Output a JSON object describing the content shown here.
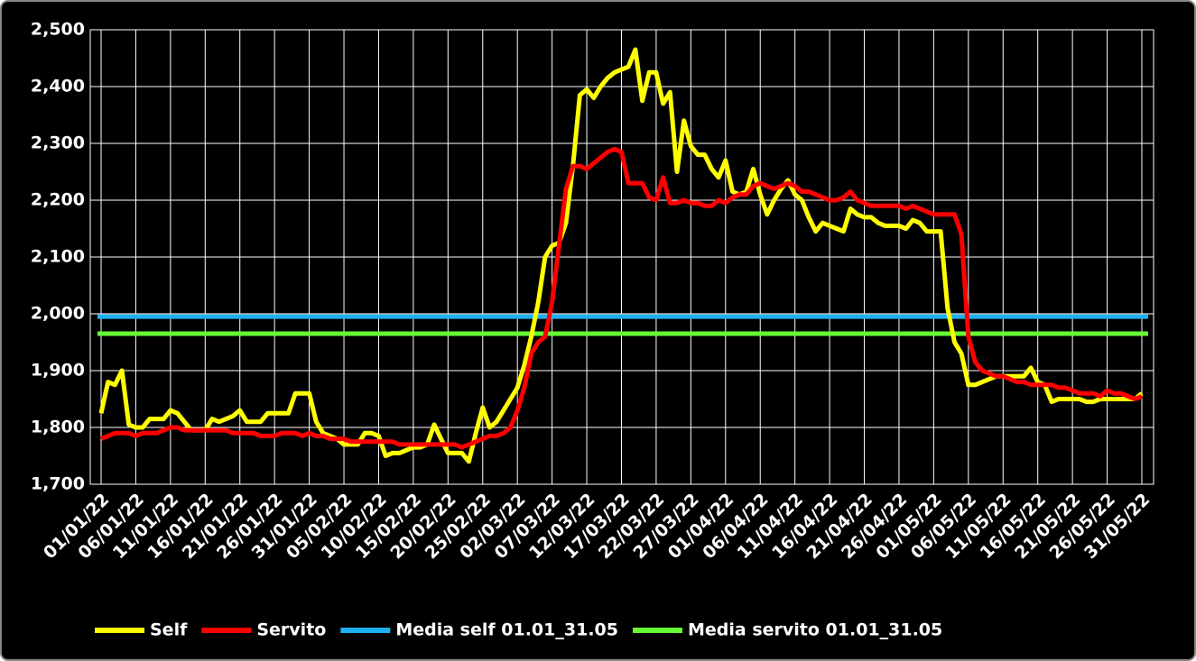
{
  "chart_data": {
    "type": "line",
    "categories": [
      "01/01/22",
      null,
      null,
      null,
      null,
      "06/01/22",
      null,
      null,
      null,
      null,
      "11/01/22",
      null,
      null,
      null,
      null,
      "16/01/22",
      null,
      null,
      null,
      null,
      "21/01/22",
      null,
      null,
      null,
      null,
      "26/01/22",
      null,
      null,
      null,
      null,
      "31/01/22",
      null,
      null,
      null,
      null,
      "05/02/22",
      null,
      null,
      null,
      null,
      "10/02/22",
      null,
      null,
      null,
      null,
      "15/02/22",
      null,
      null,
      null,
      null,
      "20/02/22",
      null,
      null,
      null,
      null,
      "25/02/22",
      null,
      null,
      null,
      null,
      "02/03/22",
      null,
      null,
      null,
      null,
      "07/03/22",
      null,
      null,
      null,
      null,
      "12/03/22",
      null,
      null,
      null,
      null,
      "17/03/22",
      null,
      null,
      null,
      null,
      "22/03/22",
      null,
      null,
      null,
      null,
      "27/03/22",
      null,
      null,
      null,
      null,
      "01/04/22",
      null,
      null,
      null,
      null,
      "06/04/22",
      null,
      null,
      null,
      null,
      "11/04/22",
      null,
      null,
      null,
      null,
      "16/04/22",
      null,
      null,
      null,
      null,
      "21/04/22",
      null,
      null,
      null,
      null,
      "26/04/22",
      null,
      null,
      null,
      null,
      "01/05/22",
      null,
      null,
      null,
      null,
      "06/05/22",
      null,
      null,
      null,
      null,
      "11/05/22",
      null,
      null,
      null,
      null,
      "16/05/22",
      null,
      null,
      null,
      null,
      "21/05/22",
      null,
      null,
      null,
      null,
      "26/05/22",
      null,
      null,
      null,
      null,
      "31/05/22"
    ],
    "series": [
      {
        "name": "Self",
        "color": "#ffff00",
        "values": [
          1825,
          1880,
          1875,
          1900,
          1805,
          1800,
          1800,
          1815,
          1815,
          1815,
          1830,
          1825,
          1810,
          1795,
          1795,
          1795,
          1815,
          1810,
          1815,
          1820,
          1830,
          1810,
          1810,
          1810,
          1825,
          1825,
          1825,
          1825,
          1860,
          1860,
          1860,
          1810,
          1790,
          1785,
          1780,
          1770,
          1770,
          1770,
          1790,
          1790,
          1785,
          1750,
          1755,
          1755,
          1760,
          1765,
          1765,
          1770,
          1805,
          1780,
          1755,
          1755,
          1755,
          1740,
          1790,
          1835,
          1800,
          1810,
          1830,
          1850,
          1870,
          1910,
          1960,
          2020,
          2100,
          2120,
          2125,
          2160,
          2260,
          2385,
          2395,
          2380,
          2400,
          2415,
          2425,
          2430,
          2435,
          2465,
          2375,
          2425,
          2425,
          2370,
          2390,
          2250,
          2340,
          2295,
          2280,
          2280,
          2255,
          2240,
          2270,
          2215,
          2210,
          2215,
          2255,
          2210,
          2175,
          2200,
          2220,
          2235,
          2210,
          2200,
          2170,
          2145,
          2160,
          2155,
          2150,
          2145,
          2185,
          2175,
          2170,
          2170,
          2160,
          2155,
          2155,
          2155,
          2150,
          2165,
          2160,
          2145,
          2145,
          2145,
          2010,
          1950,
          1930,
          1875,
          1875,
          1880,
          1885,
          1890,
          1890,
          1890,
          1890,
          1890,
          1905,
          1880,
          1875,
          1845,
          1850,
          1850,
          1850,
          1850,
          1845,
          1845,
          1850,
          1850,
          1850,
          1850,
          1850,
          1850,
          1860
        ]
      },
      {
        "name": "Servito",
        "color": "#ff0000",
        "values": [
          1780,
          1785,
          1790,
          1790,
          1790,
          1785,
          1790,
          1790,
          1790,
          1795,
          1800,
          1800,
          1795,
          1795,
          1795,
          1795,
          1795,
          1795,
          1795,
          1790,
          1790,
          1790,
          1790,
          1785,
          1785,
          1785,
          1790,
          1790,
          1790,
          1785,
          1790,
          1785,
          1785,
          1780,
          1780,
          1780,
          1775,
          1775,
          1775,
          1775,
          1775,
          1775,
          1775,
          1770,
          1770,
          1770,
          1770,
          1770,
          1770,
          1770,
          1770,
          1770,
          1765,
          1770,
          1775,
          1780,
          1785,
          1785,
          1790,
          1800,
          1830,
          1870,
          1930,
          1950,
          1960,
          2020,
          2120,
          2220,
          2260,
          2260,
          2255,
          2265,
          2275,
          2285,
          2290,
          2285,
          2230,
          2230,
          2230,
          2205,
          2200,
          2240,
          2195,
          2195,
          2200,
          2195,
          2195,
          2190,
          2190,
          2200,
          2195,
          2205,
          2210,
          2210,
          2225,
          2230,
          2225,
          2220,
          2225,
          2230,
          2225,
          2215,
          2215,
          2210,
          2205,
          2200,
          2200,
          2205,
          2215,
          2200,
          2195,
          2190,
          2190,
          2190,
          2190,
          2190,
          2185,
          2190,
          2185,
          2180,
          2175,
          2175,
          2175,
          2175,
          2140,
          1960,
          1915,
          1900,
          1895,
          1890,
          1890,
          1885,
          1880,
          1880,
          1875,
          1875,
          1875,
          1875,
          1870,
          1870,
          1865,
          1860,
          1860,
          1860,
          1855,
          1865,
          1860,
          1860,
          1855,
          1850,
          1855
        ]
      },
      {
        "name": "Media self 01.01_31.05",
        "color": "#1fb0f0",
        "value": 1995
      },
      {
        "name": "Media servito 01.01_31.05",
        "color": "#66ff33",
        "value": 1965
      }
    ],
    "ylim": [
      1700,
      2500
    ],
    "yticks": [
      {
        "value": 1700,
        "label": "1,700"
      },
      {
        "value": 1800,
        "label": "1,800"
      },
      {
        "value": 1900,
        "label": "1,900"
      },
      {
        "value": 2000,
        "label": "2,000"
      },
      {
        "value": 2100,
        "label": "2,100"
      },
      {
        "value": 2200,
        "label": "2,200"
      },
      {
        "value": 2300,
        "label": "2,300"
      },
      {
        "value": 2400,
        "label": "2,400"
      },
      {
        "value": 2500,
        "label": "2,500"
      }
    ],
    "grid": true,
    "legend": "bottom"
  }
}
